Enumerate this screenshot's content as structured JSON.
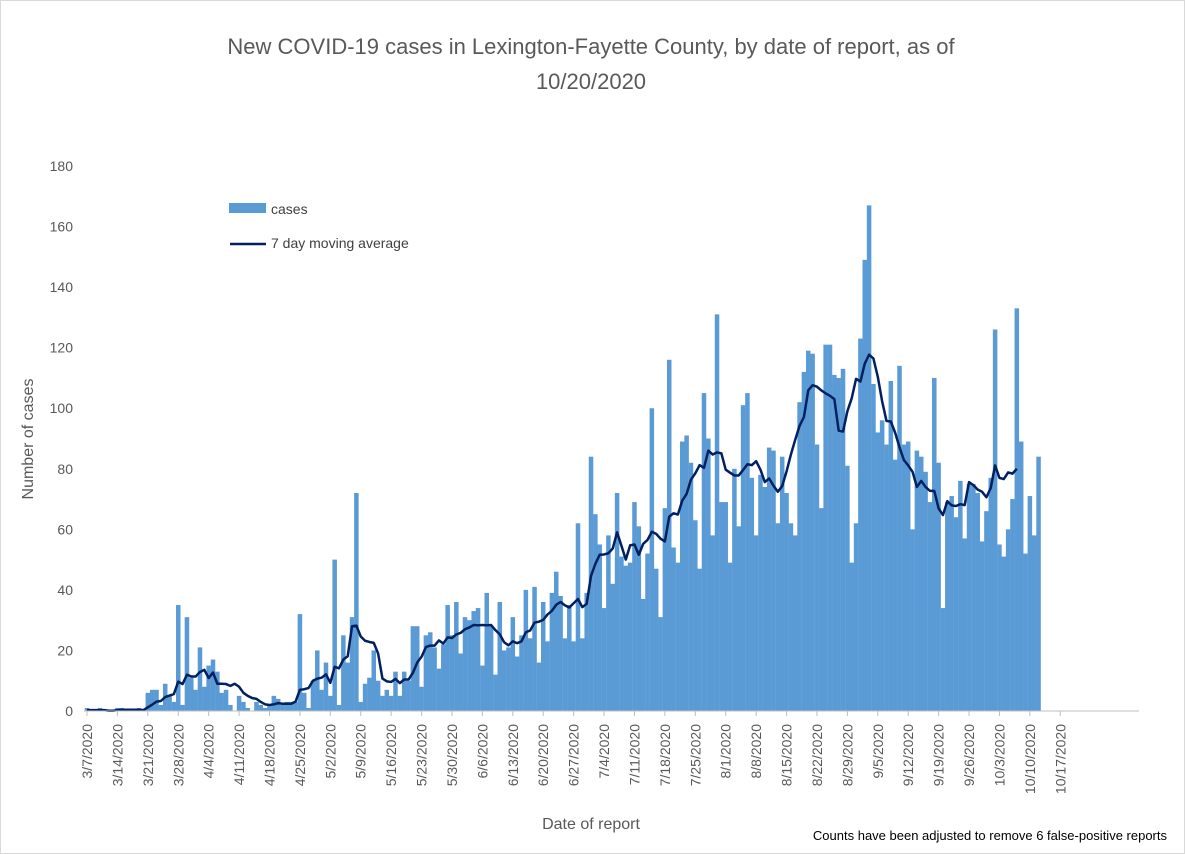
{
  "chart_data": {
    "type": "bar",
    "title_line1": "New COVID-19 cases in Lexington-Fayette County, by date of report, as of",
    "title_line2": "10/20/2020",
    "xlabel": "Date of report",
    "ylabel": "Number of cases",
    "ylim": [
      0,
      180
    ],
    "yticks": [
      "0",
      "20",
      "40",
      "60",
      "80",
      "100",
      "120",
      "140",
      "160",
      "180"
    ],
    "start_date": "3/7/2020",
    "tick_labels": [
      "3/7/2020",
      "3/14/2020",
      "3/21/2020",
      "3/28/2020",
      "4/4/2020",
      "4/11/2020",
      "4/18/2020",
      "4/25/2020",
      "5/2/2020",
      "5/9/2020",
      "5/16/2020",
      "5/23/2020",
      "5/30/2020",
      "6/6/2020",
      "6/13/2020",
      "6/20/2020",
      "6/27/2020",
      "7/4/2020",
      "7/11/2020",
      "7/18/2020",
      "7/25/2020",
      "8/1/2020",
      "8/8/2020",
      "8/15/2020",
      "8/22/2020",
      "8/29/2020",
      "9/5/2020",
      "9/12/2020",
      "9/19/2020",
      "9/26/2020",
      "10/3/2020",
      "10/10/2020",
      "10/17/2020"
    ],
    "grid": false,
    "legend_position": "top-left",
    "note": "Counts have been adjusted to remove 6 false-positive reports",
    "series": [
      {
        "name": "cases",
        "kind": "bar",
        "color": "#5b9bd5",
        "values": [
          1,
          0,
          0,
          1,
          0,
          0,
          0,
          1,
          1,
          0,
          0,
          0,
          1,
          0,
          6,
          7,
          7,
          2,
          9,
          5,
          3,
          35,
          2,
          31,
          11,
          7,
          21,
          8,
          15,
          17,
          13,
          6,
          7,
          2,
          0,
          5,
          3,
          1,
          0,
          3,
          2,
          1,
          2,
          5,
          4,
          2,
          3,
          3,
          3,
          32,
          6,
          1,
          10,
          20,
          7,
          16,
          5,
          50,
          2,
          25,
          16,
          31,
          72,
          3,
          9,
          11,
          20,
          10,
          5,
          7,
          5,
          13,
          5,
          13,
          10,
          28,
          28,
          8,
          25,
          26,
          21,
          14,
          22,
          35,
          25,
          36,
          19,
          31,
          30,
          33,
          34,
          15,
          39,
          28,
          12,
          36,
          20,
          21,
          31,
          18,
          25,
          40,
          24,
          41,
          16,
          36,
          23,
          39,
          46,
          38,
          24,
          35,
          23,
          62,
          24,
          39,
          84,
          65,
          55,
          34,
          58,
          42,
          72,
          51,
          48,
          49,
          69,
          61,
          37,
          52,
          100,
          47,
          31,
          67,
          116,
          54,
          49,
          89,
          91,
          82,
          63,
          47,
          105,
          90,
          58,
          131,
          69,
          69,
          49,
          80,
          61,
          101,
          105,
          77,
          58,
          78,
          74,
          87,
          86,
          62,
          84,
          72,
          62,
          58,
          102,
          112,
          119,
          118,
          88,
          67,
          121,
          121,
          111,
          110,
          113,
          81,
          49,
          62,
          123,
          149,
          167,
          108,
          92,
          96,
          88,
          109,
          83,
          114,
          88,
          89,
          60,
          86,
          84,
          79,
          69,
          110,
          82,
          34,
          69,
          71,
          64,
          76,
          57,
          75,
          75,
          72,
          56,
          66,
          77,
          126,
          55,
          51,
          60,
          70,
          133,
          89,
          52,
          71,
          58,
          84
        ]
      },
      {
        "name": "7 day moving average",
        "kind": "line",
        "color": "#002060",
        "values": [
          0.3,
          0.3,
          0.3,
          0.3,
          0.3,
          0.1,
          0.1,
          0.3,
          0.4,
          0.4,
          0.4,
          0.4,
          0.4,
          0.3,
          1.2,
          2.1,
          3.1,
          3.3,
          4.6,
          5.1,
          5.6,
          9.7,
          8.9,
          12.0,
          11.4,
          11.4,
          12.9,
          13.6,
          10.9,
          12.7,
          9.0,
          9.0,
          8.9,
          8.3,
          9.0,
          8.0,
          6.0,
          5.0,
          4.3,
          4.0,
          3.0,
          2.2,
          2.0,
          2.2,
          2.6,
          2.4,
          2.4,
          2.4,
          3.1,
          7.0,
          7.2,
          7.6,
          10.0,
          10.7,
          11.0,
          12.1,
          9.3,
          14.6,
          14.1,
          17.0,
          18.1,
          28.0,
          28.2,
          24.6,
          23.2,
          22.8,
          22.5,
          19.0,
          10.7,
          9.8,
          9.6,
          10.6,
          9.2,
          10.4,
          10.4,
          12.6,
          16.0,
          17.9,
          21.1,
          21.6,
          21.6,
          23.3,
          22.3,
          24.3,
          24.1,
          25.3,
          25.8,
          27.0,
          27.6,
          28.4,
          28.3,
          28.4,
          28.3,
          28.4,
          26.7,
          25.3,
          22.7,
          21.7,
          23.0,
          22.4,
          23.0,
          26.0,
          26.6,
          29.2,
          29.5,
          30.1,
          31.9,
          33.1,
          35.1,
          36.0,
          34.9,
          34.2,
          35.6,
          37.0,
          34.3,
          35.4,
          44.6,
          48.6,
          51.6,
          51.7,
          52.1,
          53.7,
          59.0,
          54.6,
          50.0,
          54.7,
          55.0,
          51.6,
          55.2,
          56.5,
          59.2,
          58.5,
          56.9,
          56.0,
          64.2,
          65.3,
          64.9,
          69.5,
          71.7,
          76.4,
          78.5,
          81.2,
          80.3,
          86.0,
          84.7,
          85.4,
          85.1,
          79.7,
          78.7,
          77.8,
          77.8,
          79.6,
          81.5,
          81.2,
          82.5,
          79.7,
          75.6,
          76.8,
          74.4,
          72.4,
          74.3,
          79.1,
          84.7,
          89.6,
          94.2,
          97.1,
          105.9,
          107.6,
          107.1,
          105.9,
          104.9,
          104.1,
          103.0,
          92.6,
          92.3,
          99.0,
          103.3,
          109.7,
          108.8,
          114.7,
          117.7,
          116.4,
          110.4,
          102.3,
          95.8,
          95.6,
          91.9,
          87.1,
          82.9,
          81.1,
          79.0,
          74.0,
          76.0,
          74.0,
          72.7,
          72.7,
          66.9,
          64.7,
          69.3,
          67.9,
          67.7,
          68.3,
          68.0,
          75.6,
          74.6,
          73.1,
          72.4,
          70.6,
          73.7,
          81.1,
          77.0,
          76.6,
          78.8,
          78.4,
          80.0
        ]
      }
    ]
  }
}
